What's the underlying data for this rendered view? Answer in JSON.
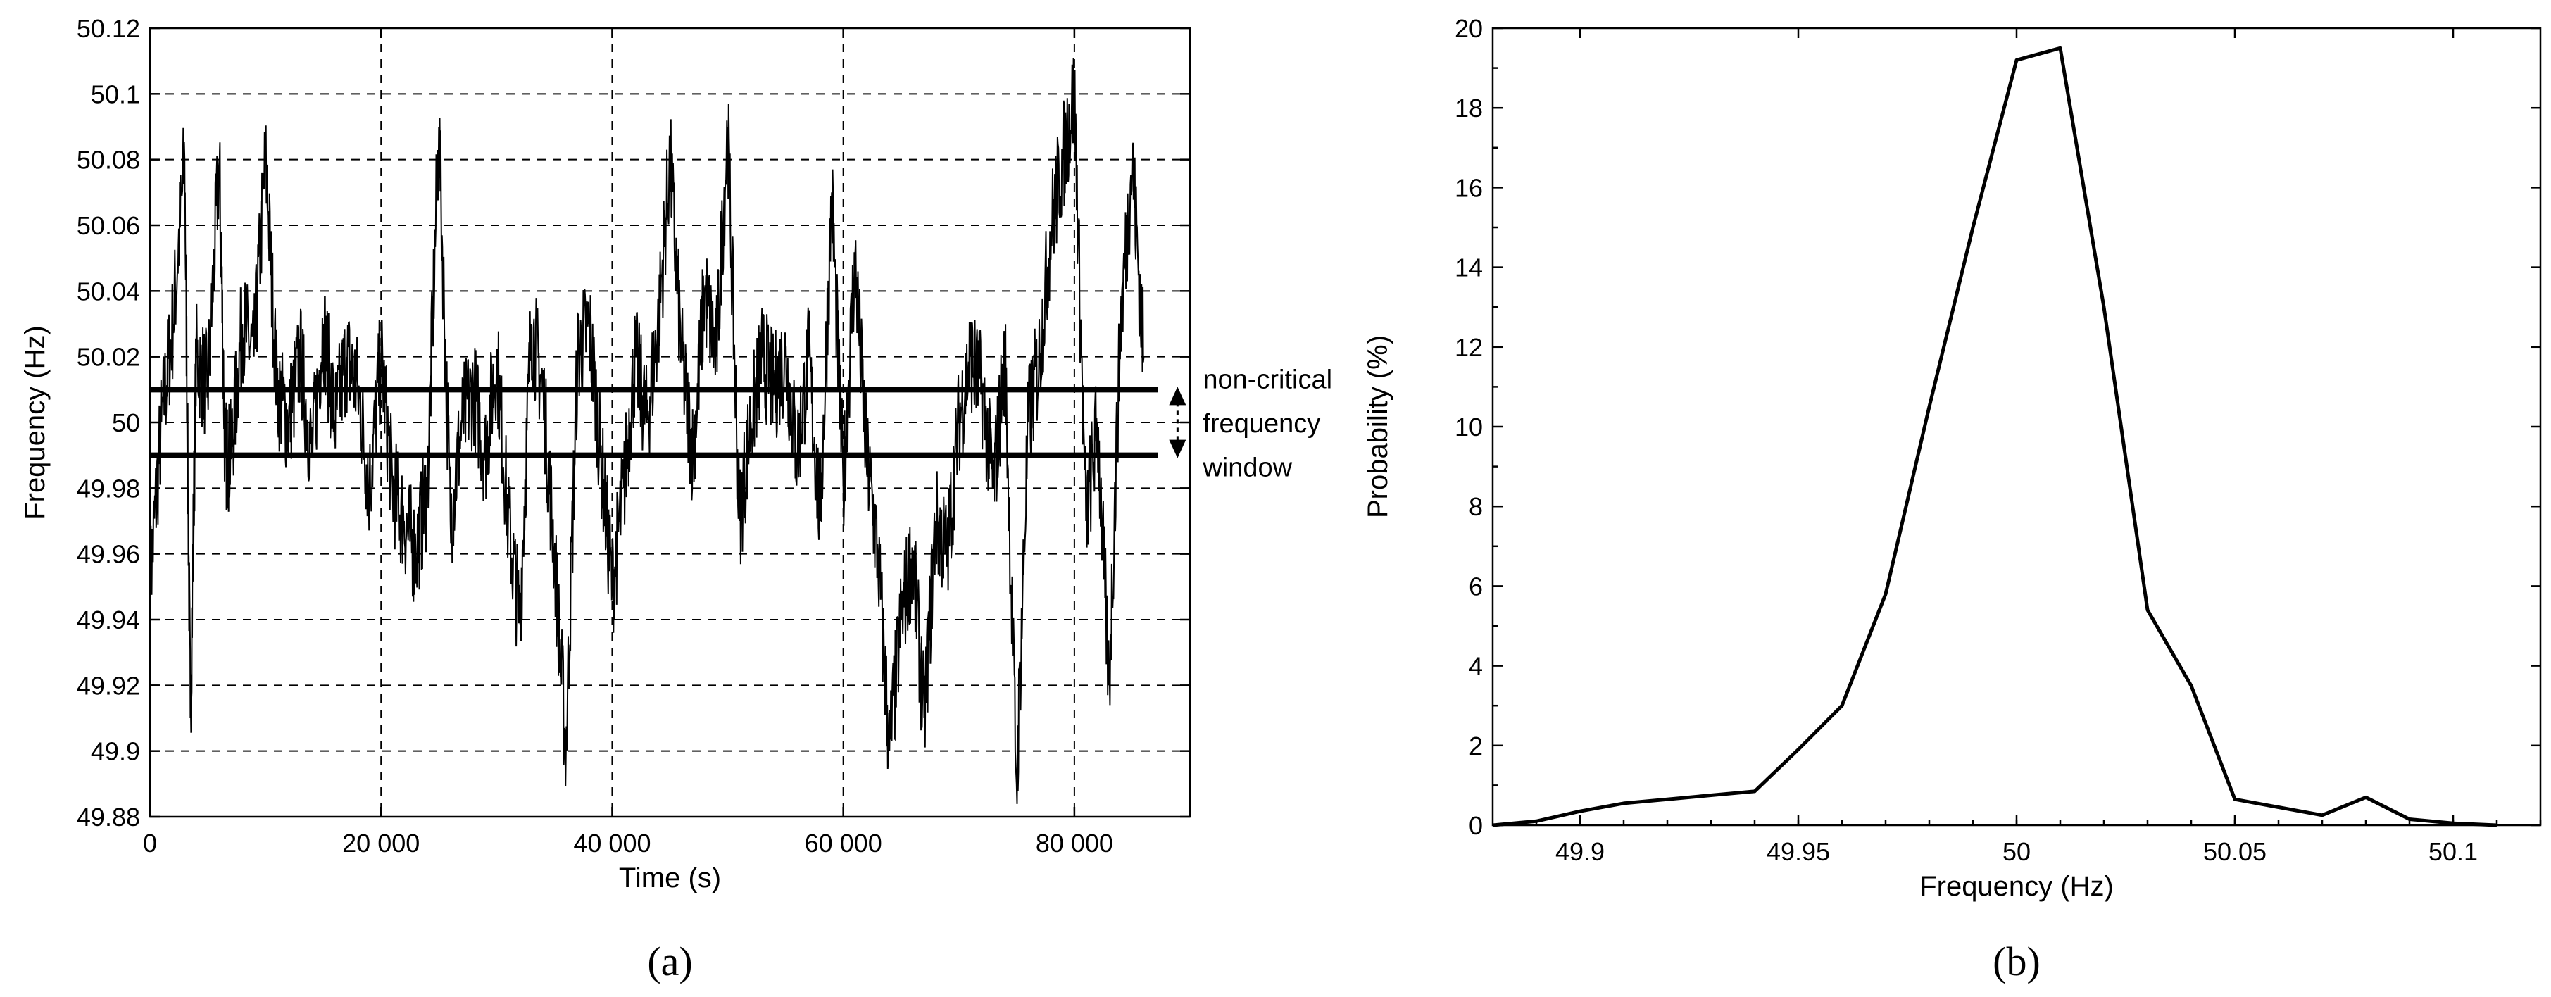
{
  "chart_data": [
    {
      "type": "line",
      "panel_label": "(a)",
      "xlabel": "Time (s)",
      "ylabel": "Frequency (Hz)",
      "xlim": [
        0,
        90000
      ],
      "ylim": [
        49.88,
        50.12
      ],
      "x_ticks": [
        0,
        20000,
        40000,
        60000,
        80000
      ],
      "x_tick_labels": [
        "0",
        "20 000",
        "40 000",
        "60 000",
        "80 000"
      ],
      "y_ticks": [
        49.88,
        49.9,
        49.92,
        49.94,
        49.96,
        49.98,
        50,
        50.02,
        50.04,
        50.06,
        50.08,
        50.1,
        50.12
      ],
      "y_tick_labels": [
        "49.88",
        "49.9",
        "49.92",
        "49.94",
        "49.96",
        "49.98",
        "50",
        "50.02",
        "50.04",
        "50.06",
        "50.08",
        "50.1",
        "50.12"
      ],
      "grid": true,
      "series": [
        {
          "x": [
            0,
            1000,
            2000,
            3000,
            3500,
            4000,
            5000,
            6000,
            6500,
            7000,
            8000,
            9000,
            10000,
            11000,
            12000,
            13000,
            14000,
            15000,
            16000,
            17000,
            18000,
            19000,
            20000,
            21000,
            22000,
            23000,
            24000,
            25000,
            26000,
            27000,
            28000,
            29000,
            30000,
            31000,
            32000,
            33000,
            34000,
            35000,
            36000,
            37000,
            38000,
            39000,
            40000,
            41000,
            42000,
            43000,
            44000,
            45000,
            46000,
            47000,
            48000,
            49000,
            50000,
            51000,
            52000,
            53000,
            54000,
            55000,
            56000,
            57000,
            58000,
            59000,
            60000,
            61000,
            62000,
            63000,
            64000,
            65000,
            66000,
            67000,
            68000,
            69000,
            70000,
            71000,
            72000,
            73000,
            74000,
            75000,
            76000,
            77000,
            78000,
            79000,
            80000,
            81000,
            82000,
            83000,
            84000,
            85000,
            86000
          ],
          "y": [
            49.95,
            50.0,
            50.03,
            50.08,
            49.91,
            50.02,
            50.01,
            50.08,
            49.99,
            49.99,
            50.03,
            50.02,
            50.08,
            50.01,
            50.0,
            50.02,
            49.99,
            50.03,
            50.0,
            50.02,
            50.01,
            49.98,
            50.02,
            49.98,
            49.97,
            49.96,
            49.98,
            50.09,
            49.97,
            50.0,
            50.01,
            49.99,
            50.02,
            49.97,
            49.94,
            50.03,
            50.01,
            49.96,
            49.9,
            50.02,
            50.03,
            49.99,
            49.95,
            49.98,
            50.02,
            50.0,
            50.03,
            50.08,
            50.02,
            49.99,
            50.04,
            50.02,
            50.09,
            49.97,
            50.0,
            50.02,
            50.01,
            50.02,
            49.99,
            50.02,
            49.97,
            50.07,
            49.98,
            50.05,
            49.99,
            49.96,
            49.9,
            49.94,
            49.96,
            49.91,
            49.97,
            49.96,
            50.0,
            50.02,
            50.01,
            49.98,
            50.02,
            49.89,
            50.0,
            50.02,
            50.06,
            50.08,
            50.1,
            49.97,
            50.0,
            49.92,
            50.03,
            50.08,
            50.02
          ]
        }
      ],
      "hlines": [
        49.99,
        50.01
      ],
      "annotation": [
        "non-critical",
        "frequency",
        "window"
      ]
    },
    {
      "type": "line",
      "panel_label": "(b)",
      "xlabel": "Frequency (Hz)",
      "ylabel": "Probability (%)",
      "xlim": [
        49.88,
        50.12
      ],
      "ylim": [
        0,
        20
      ],
      "x_ticks": [
        49.9,
        49.95,
        50,
        50.05,
        50.1
      ],
      "x_tick_labels": [
        "49.9",
        "49.95",
        "50",
        "50.05",
        "50.1"
      ],
      "y_ticks": [
        0,
        2,
        4,
        6,
        8,
        10,
        12,
        14,
        16,
        18,
        20
      ],
      "y_tick_labels": [
        "0",
        "2",
        "4",
        "6",
        "8",
        "10",
        "12",
        "14",
        "16",
        "18",
        "20"
      ],
      "grid": false,
      "series": [
        {
          "x": [
            49.88,
            49.89,
            49.9,
            49.91,
            49.92,
            49.93,
            49.94,
            49.95,
            49.96,
            49.97,
            49.98,
            49.99,
            50.0,
            50.01,
            50.02,
            50.03,
            50.04,
            50.05,
            50.06,
            50.07,
            50.08,
            50.09,
            50.1,
            50.11
          ],
          "y": [
            0.0,
            0.1,
            0.35,
            0.55,
            0.65,
            0.75,
            0.85,
            1.9,
            3.0,
            5.8,
            10.5,
            15.0,
            19.2,
            19.5,
            13.0,
            5.4,
            3.5,
            0.65,
            0.45,
            0.25,
            0.7,
            0.15,
            0.05,
            0.0
          ]
        }
      ]
    }
  ]
}
